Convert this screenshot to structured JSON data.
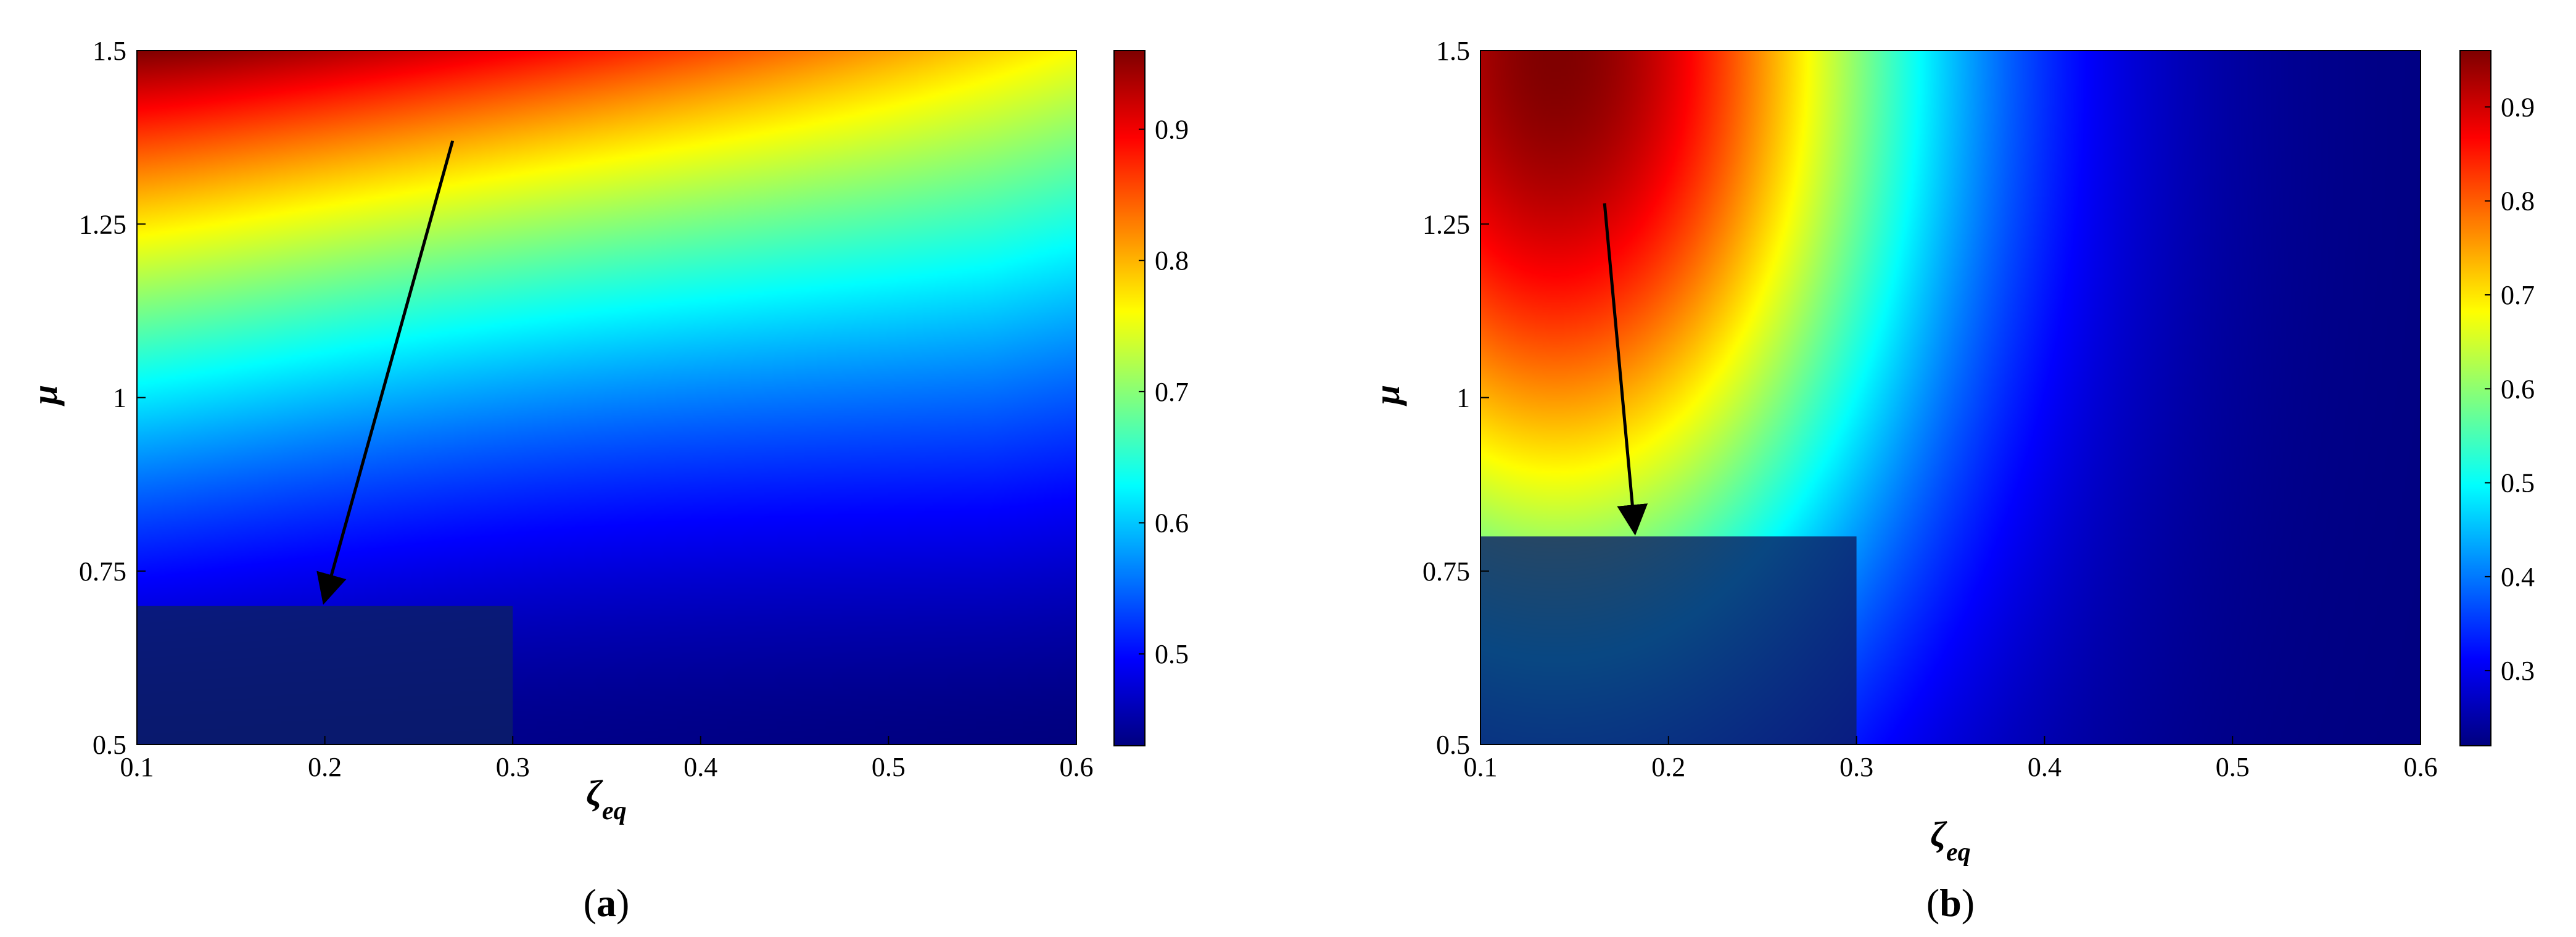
{
  "chart_data": [
    {
      "type": "heatmap",
      "panel_label": "a",
      "xlabel": "ζ",
      "xlabel_subscript": "eq",
      "ylabel": "μ",
      "xlim": [
        0.1,
        0.6
      ],
      "ylim": [
        0.5,
        1.5
      ],
      "x_ticks": [
        "0.1",
        "0.2",
        "0.3",
        "0.4",
        "0.5",
        "0.6"
      ],
      "y_ticks": [
        "0.5",
        "0.75",
        "1",
        "1.25",
        "1.5"
      ],
      "colorbar": {
        "min": 0.43,
        "max": 0.96,
        "ticks": [
          "0.5",
          "0.6",
          "0.7",
          "0.8",
          "0.9"
        ],
        "colormap": "jet"
      },
      "field": {
        "description_x": [
          0.1,
          0.2,
          0.3,
          0.4,
          0.5,
          0.6
        ],
        "corner_values": {
          "x0.1_y1.5": 0.96,
          "x0.6_y1.5": 0.76,
          "x0.1_y0.5": 0.44,
          "x0.6_y0.5": 0.43
        },
        "curvature": 0.62
      },
      "shaded_region": {
        "x": [
          0.1,
          0.3
        ],
        "y": [
          0.5,
          0.7
        ],
        "color": "#0b1f66"
      },
      "arrow": {
        "from": [
          0.268,
          1.37
        ],
        "to": [
          0.2,
          0.71
        ]
      }
    },
    {
      "type": "heatmap",
      "panel_label": "b",
      "xlabel": "ζ",
      "xlabel_subscript": "eq",
      "ylabel": "μ",
      "xlim": [
        0.1,
        0.6
      ],
      "ylim": [
        0.5,
        1.5
      ],
      "x_ticks": [
        "0.1",
        "0.2",
        "0.3",
        "0.4",
        "0.5",
        "0.6"
      ],
      "y_ticks": [
        "0.5",
        "0.75",
        "1",
        "1.25",
        "1.5"
      ],
      "colorbar": {
        "min": 0.22,
        "max": 0.96,
        "ticks": [
          "0.3",
          "0.4",
          "0.5",
          "0.6",
          "0.7",
          "0.8",
          "0.9"
        ],
        "colormap": "jet"
      },
      "field": {
        "peak": [
          0.14,
          1.5
        ],
        "peak_value": 0.96,
        "floor_value": 0.22
      },
      "shaded_region": {
        "x": [
          0.1,
          0.3
        ],
        "y": [
          0.5,
          0.8
        ],
        "color": "#0b1f66"
      },
      "arrow": {
        "from": [
          0.166,
          1.28
        ],
        "to": [
          0.182,
          0.81
        ]
      }
    }
  ]
}
